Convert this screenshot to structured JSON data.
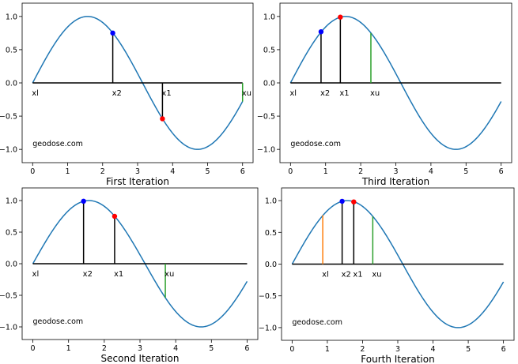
{
  "chart_data": [
    {
      "type": "line",
      "title": "First Iteration",
      "watermark": "geodose.com",
      "xlim": [
        -0.3,
        6.3
      ],
      "ylim": [
        -1.2,
        1.2
      ],
      "xticks": [
        0,
        1,
        2,
        3,
        4,
        5,
        6
      ],
      "yticks": [
        1.0,
        0.5,
        0.0,
        -0.5,
        -1.0
      ],
      "xtick_labels": [
        "0",
        "1",
        "2",
        "3",
        "4",
        "5",
        "6"
      ],
      "ytick_labels": [
        "1.0",
        "0.5",
        "0.0",
        "−0.5",
        "−1.0"
      ],
      "curve": {
        "function": "sin",
        "x_range": [
          0,
          6
        ],
        "color": "#1f77b4"
      },
      "baseline": {
        "y": 0,
        "x_range": [
          0,
          6
        ]
      },
      "markers": [
        {
          "label": "xl",
          "x": 0,
          "y": 0,
          "line_color": "#000000"
        },
        {
          "label": "x2",
          "x": 2.29,
          "y": 0.75,
          "line_color": "#000000",
          "point_color": "#0000ff"
        },
        {
          "label": "x1",
          "x": 3.71,
          "y": -0.54,
          "line_color": "#000000",
          "point_color": "#ff0000"
        },
        {
          "label": "xu",
          "x": 6,
          "y": -0.28,
          "line_color": "#2ca02c"
        }
      ]
    },
    {
      "type": "line",
      "title": "Third Iteration",
      "watermark": "geodose.com",
      "xlim": [
        -0.3,
        6.3
      ],
      "ylim": [
        -1.2,
        1.2
      ],
      "xticks": [
        0,
        1,
        2,
        3,
        4,
        5,
        6
      ],
      "yticks": [
        1.0,
        0.5,
        0.0,
        -0.5,
        -1.0
      ],
      "xtick_labels": [
        "0",
        "1",
        "2",
        "3",
        "4",
        "5",
        "6"
      ],
      "ytick_labels": [
        "1.0",
        "0.5",
        "0.0",
        "−0.5",
        "−1.0"
      ],
      "curve": {
        "function": "sin",
        "x_range": [
          0,
          6
        ],
        "color": "#1f77b4"
      },
      "baseline": {
        "y": 0,
        "x_range": [
          0,
          6
        ]
      },
      "markers": [
        {
          "label": "xl",
          "x": 0,
          "y": 0,
          "line_color": "#000000"
        },
        {
          "label": "x2",
          "x": 0.87,
          "y": 0.77,
          "line_color": "#000000",
          "point_color": "#0000ff"
        },
        {
          "label": "x1",
          "x": 1.42,
          "y": 0.99,
          "line_color": "#000000",
          "point_color": "#ff0000"
        },
        {
          "label": "xu",
          "x": 2.29,
          "y": 0.75,
          "line_color": "#2ca02c"
        }
      ]
    },
    {
      "type": "line",
      "title": "Second Iteration",
      "watermark": "geodose.com",
      "xlim": [
        -0.3,
        6.3
      ],
      "ylim": [
        -1.2,
        1.2
      ],
      "xticks": [
        0,
        1,
        2,
        3,
        4,
        5,
        6
      ],
      "yticks": [
        1.0,
        0.5,
        0.0,
        -0.5,
        -1.0
      ],
      "xtick_labels": [
        "0",
        "1",
        "2",
        "3",
        "4",
        "5",
        "6"
      ],
      "ytick_labels": [
        "1.0",
        "0.5",
        "0.0",
        "−0.5",
        "−1.0"
      ],
      "curve": {
        "function": "sin",
        "x_range": [
          0,
          6
        ],
        "color": "#1f77b4"
      },
      "baseline": {
        "y": 0,
        "x_range": [
          0,
          6
        ]
      },
      "markers": [
        {
          "label": "xl",
          "x": 0,
          "y": 0,
          "line_color": "#000000"
        },
        {
          "label": "x2",
          "x": 1.42,
          "y": 0.99,
          "line_color": "#000000",
          "point_color": "#0000ff"
        },
        {
          "label": "x1",
          "x": 2.29,
          "y": 0.75,
          "line_color": "#000000",
          "point_color": "#ff0000"
        },
        {
          "label": "xu",
          "x": 3.71,
          "y": -0.54,
          "line_color": "#2ca02c"
        }
      ]
    },
    {
      "type": "line",
      "title": "Fourth Iteration",
      "watermark": "geodose.com",
      "xlim": [
        -0.3,
        6.3
      ],
      "ylim": [
        -1.2,
        1.2
      ],
      "xticks": [
        0,
        1,
        2,
        3,
        4,
        5,
        6
      ],
      "yticks": [
        1.0,
        0.5,
        0.0,
        -0.5,
        -1.0
      ],
      "xtick_labels": [
        "0",
        "1",
        "2",
        "3",
        "4",
        "5",
        "6"
      ],
      "ytick_labels": [
        "1.0",
        "0.5",
        "0.0",
        "−0.5",
        "−1.0"
      ],
      "curve": {
        "function": "sin",
        "x_range": [
          0,
          6
        ],
        "color": "#1f77b4"
      },
      "baseline": {
        "y": 0,
        "x_range": [
          0,
          6
        ]
      },
      "markers": [
        {
          "label": "xl",
          "x": 0.87,
          "y": 0.77,
          "line_color": "#ff7f0e"
        },
        {
          "label": "x2",
          "x": 1.42,
          "y": 0.99,
          "line_color": "#000000",
          "point_color": "#0000ff"
        },
        {
          "label": "x1",
          "x": 1.75,
          "y": 0.98,
          "line_color": "#000000",
          "point_color": "#ff0000"
        },
        {
          "label": "xu",
          "x": 2.29,
          "y": 0.75,
          "line_color": "#2ca02c"
        }
      ]
    }
  ]
}
